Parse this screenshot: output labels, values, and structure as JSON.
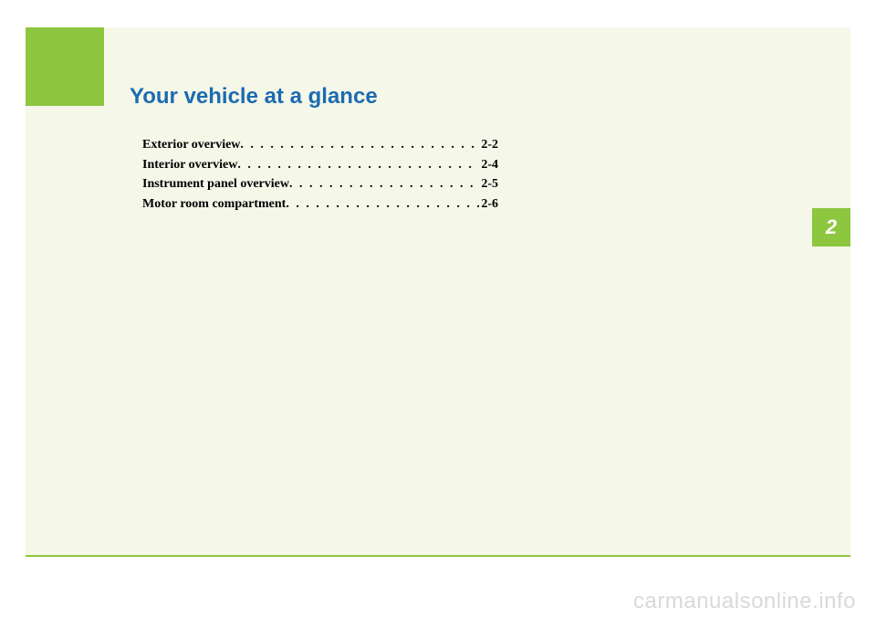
{
  "chapter": {
    "title": "Your vehicle at a glance",
    "number": "2",
    "title_color": "#1c6bb0",
    "accent_color": "#8dc63f",
    "page_bg": "#f5f7e8"
  },
  "toc": [
    {
      "label": "Exterior overview",
      "page": "2-2"
    },
    {
      "label": "Interior overview",
      "page": "2-4"
    },
    {
      "label": "Instrument panel overview",
      "page": "2-5"
    },
    {
      "label": "Motor room compartment",
      "page": "2-6"
    }
  ],
  "watermark": "carmanualsonline.info"
}
